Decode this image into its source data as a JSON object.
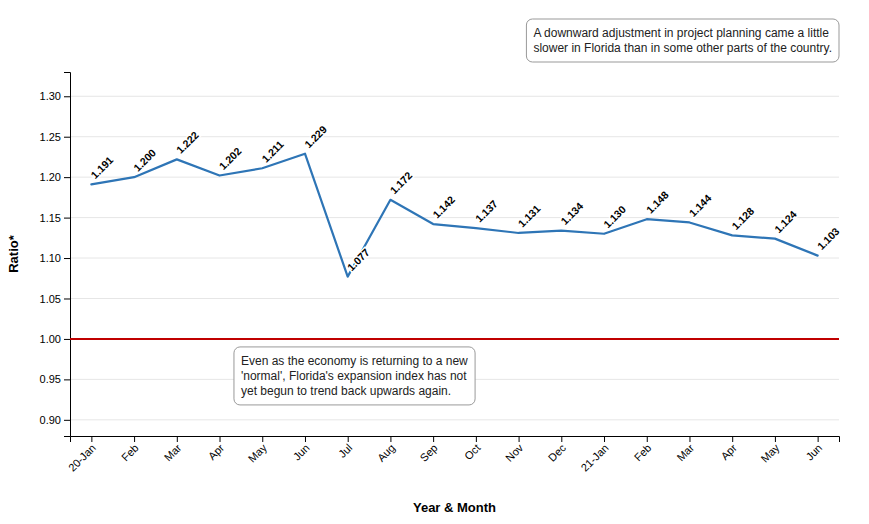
{
  "chart_data": {
    "type": "line",
    "xlabel": "Year & Month",
    "ylabel": "Ratio*",
    "categories": [
      "20-Jan",
      "Feb",
      "Mar",
      "Apr",
      "May",
      "Jun",
      "Jul",
      "Aug",
      "Sep",
      "Oct",
      "Nov",
      "Dec",
      "21-Jan",
      "Feb",
      "Mar",
      "Apr",
      "May",
      "Jun"
    ],
    "values": [
      1.191,
      1.2,
      1.222,
      1.202,
      1.211,
      1.229,
      1.077,
      1.172,
      1.142,
      1.137,
      1.131,
      1.134,
      1.13,
      1.148,
      1.144,
      1.128,
      1.124,
      1.103
    ],
    "value_labels": [
      "1.191",
      "1.200",
      "1.222",
      "1.202",
      "1.211",
      "1.229",
      "1.077",
      "1.172",
      "1.142",
      "1.137",
      "1.131",
      "1.134",
      "1.130",
      "1.148",
      "1.144",
      "1.128",
      "1.124",
      "1.103"
    ],
    "color": "#2E75B6",
    "data_labels": true,
    "reference_lines": [
      {
        "value": 1.0,
        "color": "#C00000"
      }
    ],
    "ylim": [
      0.88,
      1.33
    ],
    "yticks": [
      {
        "value": 0.9,
        "label": "0.90"
      },
      0.95,
      {
        "value": 1.0,
        "label": "1.00"
      },
      1.05,
      {
        "value": 1.1,
        "label": "1.10"
      },
      1.15,
      {
        "value": 1.2,
        "label": "1.20"
      },
      1.25,
      {
        "value": 1.3,
        "label": "1.30"
      }
    ],
    "grid": true,
    "annotations": [
      "A downward adjustment in project planning came a little\nslower in Florida than in some other parts of the country.",
      "Even as the economy is returning to a new\n'normal', Florida's expansion index has not\nyet begun to trend back upwards again."
    ]
  }
}
